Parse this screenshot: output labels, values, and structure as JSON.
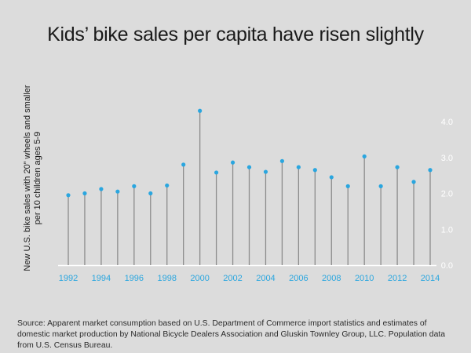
{
  "title": "Kids’ bike sales per capita have risen slightly",
  "source_note": "Source: Apparent market consumption based on U.S. Department of Commerce import statistics and estimates of domestic market production by National Bicycle Dealers Association and Gluskin Townley Group, LLC. Population data from U.S. Census Bureau.",
  "colors": {
    "background": "#dcdcdc",
    "stem": "#8c8c8c",
    "point": "#2aa6df",
    "axis": "#ffffff",
    "tick_x": "#2aa6df",
    "tick_y": "#ffffff"
  },
  "chart_data": {
    "type": "scatter",
    "style": "lollipop",
    "title": "Kids’ bike sales per capita have risen slightly",
    "xlabel": "",
    "ylabel": "New U.S. bike sales with 20” wheels and smaller per 10 children ages 5-9",
    "x": [
      1992,
      1993,
      1994,
      1995,
      1996,
      1997,
      1998,
      1999,
      2000,
      2001,
      2002,
      2003,
      2004,
      2005,
      2006,
      2007,
      2008,
      2009,
      2010,
      2011,
      2012,
      2013,
      2014
    ],
    "values": [
      1.95,
      2.0,
      2.12,
      2.05,
      2.2,
      2.0,
      2.22,
      2.8,
      4.3,
      2.58,
      2.86,
      2.73,
      2.6,
      2.9,
      2.73,
      2.65,
      2.45,
      2.2,
      3.03,
      2.2,
      2.73,
      2.32,
      2.65
    ],
    "x_ticks": [
      "1992",
      "1994",
      "1996",
      "1998",
      "2000",
      "2002",
      "2004",
      "2006",
      "2008",
      "2010",
      "2012",
      "2014"
    ],
    "y_ticks": [
      "0.0",
      "1.0",
      "2.0",
      "3.0",
      "4.0"
    ],
    "ylim": [
      0,
      4.5
    ],
    "y_axis_position": "right",
    "grid": false,
    "legend": "none"
  }
}
